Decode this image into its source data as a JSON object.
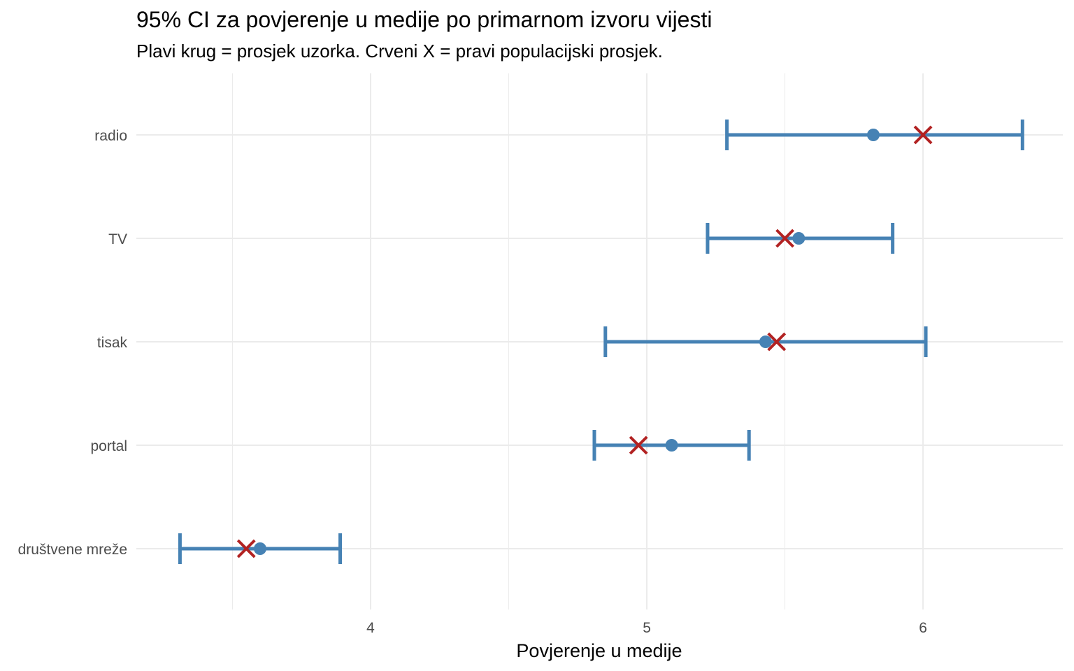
{
  "chart_data": {
    "type": "errorbar",
    "title": "95% CI za povjerenje u medije po primarnom izvoru vijesti",
    "subtitle": "Plavi krug = prosjek uzorka. Crveni X = pravi populacijski prosjek.",
    "xlabel": "Povjerenje u medije",
    "ylabel": "",
    "xlim": [
      3.152,
      6.506
    ],
    "x_ticks": [
      4,
      5,
      6
    ],
    "x_tick_labels": [
      "4",
      "5",
      "6"
    ],
    "x_minor_grid": [
      3.5,
      4.5,
      5.5
    ],
    "grid": true,
    "categories": [
      "radio",
      "TV",
      "tisak",
      "portal",
      "društvene mreže"
    ],
    "series": [
      {
        "name": "CI lower",
        "values": [
          5.29,
          5.22,
          4.85,
          4.81,
          3.31
        ]
      },
      {
        "name": "CI upper",
        "values": [
          6.36,
          5.89,
          6.01,
          5.37,
          3.89
        ]
      },
      {
        "name": "Sample mean",
        "values": [
          5.82,
          5.55,
          5.43,
          5.09,
          3.6
        ]
      },
      {
        "name": "True population mean",
        "values": [
          6.0,
          5.5,
          5.47,
          4.97,
          3.55
        ]
      }
    ],
    "colors": {
      "ci": "#4682B4",
      "mean": "#4682B4",
      "true": "#B22222",
      "grid": "#EBEBEB"
    }
  }
}
